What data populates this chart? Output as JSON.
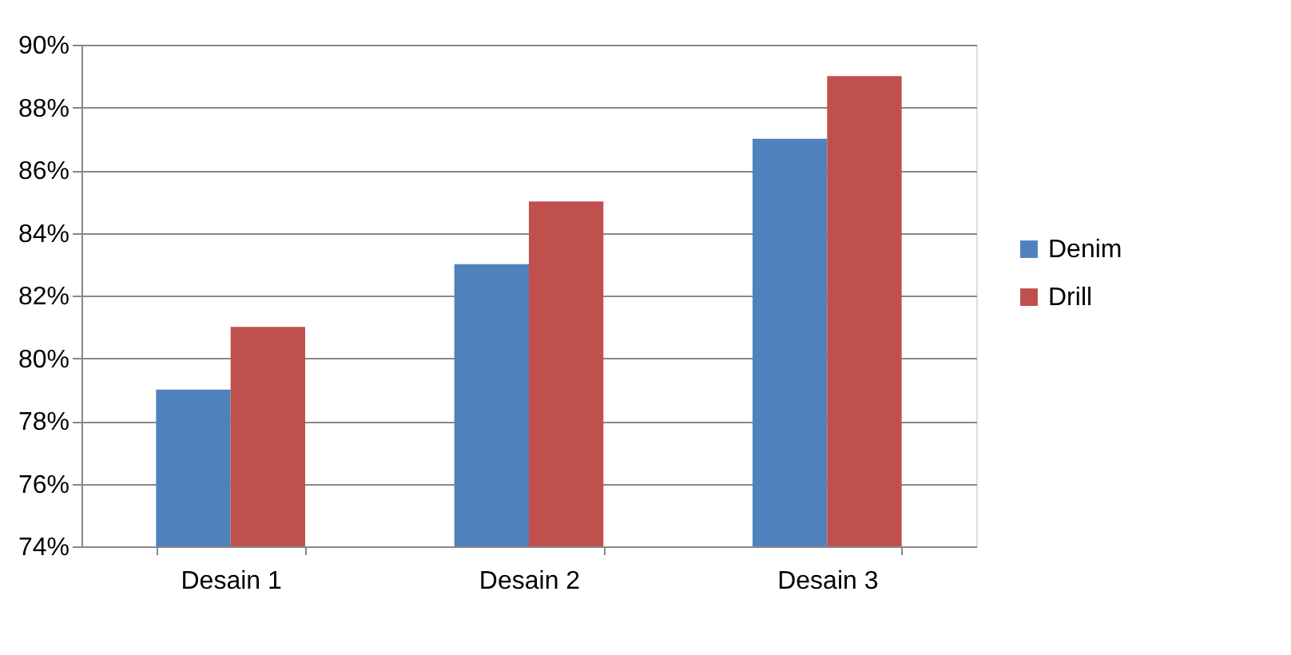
{
  "chart_data": {
    "type": "bar",
    "categories": [
      "Desain 1",
      "Desain 2",
      "Desain 3"
    ],
    "series": [
      {
        "name": "Denim",
        "color": "#4f81bd",
        "values": [
          79,
          83,
          87
        ]
      },
      {
        "name": "Drill",
        "color": "#c0504d",
        "values": [
          81,
          85,
          89
        ]
      }
    ],
    "ylim": [
      74,
      90
    ],
    "yticks": [
      {
        "value": 74,
        "label": "74%"
      },
      {
        "value": 76,
        "label": "76%"
      },
      {
        "value": 78,
        "label": "78%"
      },
      {
        "value": 80,
        "label": "80%"
      },
      {
        "value": 82,
        "label": "82%"
      },
      {
        "value": 84,
        "label": "84%"
      },
      {
        "value": 86,
        "label": "86%"
      },
      {
        "value": 88,
        "label": "88%"
      },
      {
        "value": 90,
        "label": "90%"
      }
    ],
    "grid": "y",
    "legend": "right"
  }
}
